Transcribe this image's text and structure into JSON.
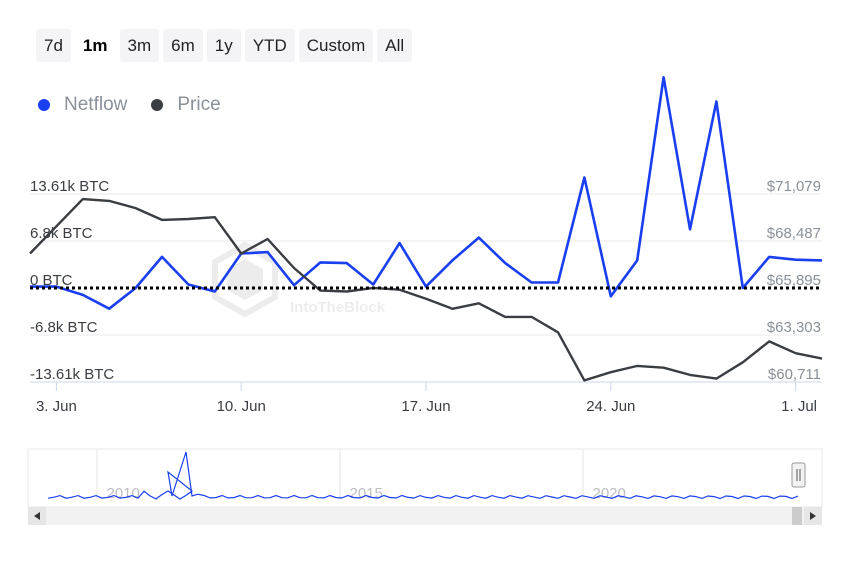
{
  "range_selector": {
    "buttons": [
      "7d",
      "1m",
      "3m",
      "6m",
      "1y",
      "YTD",
      "Custom",
      "All"
    ],
    "active": "1m"
  },
  "legend": {
    "netflow": {
      "label": "Netflow",
      "color": "#1a3ff0"
    },
    "price": {
      "label": "Price",
      "color": "#3a3d42"
    }
  },
  "watermark": "IntoTheBlock",
  "chart_data": {
    "type": "line",
    "x": [
      "2024-06-02",
      "2024-06-03",
      "2024-06-04",
      "2024-06-05",
      "2024-06-06",
      "2024-06-07",
      "2024-06-08",
      "2024-06-09",
      "2024-06-10",
      "2024-06-11",
      "2024-06-12",
      "2024-06-13",
      "2024-06-14",
      "2024-06-15",
      "2024-06-16",
      "2024-06-17",
      "2024-06-18",
      "2024-06-19",
      "2024-06-20",
      "2024-06-21",
      "2024-06-22",
      "2024-06-23",
      "2024-06-24",
      "2024-06-25",
      "2024-06-26",
      "2024-06-27",
      "2024-06-28",
      "2024-06-29",
      "2024-06-30",
      "2024-07-01",
      "2024-07-02"
    ],
    "x_tick_labels": [
      "3. Jun",
      "10. Jun",
      "17. Jun",
      "24. Jun",
      "1. Jul"
    ],
    "x_tick_dates": [
      "2024-06-03",
      "2024-06-10",
      "2024-06-17",
      "2024-06-24",
      "2024-07-01"
    ],
    "series": [
      {
        "name": "Netflow",
        "axis": "left",
        "color": "#1a3ff0",
        "values": [
          200,
          200,
          -1000,
          -3000,
          0,
          4500,
          500,
          -500,
          5000,
          5200,
          400,
          3700,
          3600,
          500,
          6500,
          200,
          4000,
          7300,
          3600,
          800,
          800,
          16000,
          -1200,
          4000,
          30500,
          8500,
          27000,
          0,
          4500,
          4100,
          4000
        ]
      },
      {
        "name": "Price",
        "axis": "right",
        "color": "#3a3d42",
        "values": [
          67800,
          69300,
          70800,
          70700,
          70300,
          69650,
          69700,
          69800,
          67800,
          68600,
          67000,
          65750,
          65700,
          65900,
          65800,
          65300,
          64750,
          65050,
          64300,
          64300,
          63450,
          60800,
          61250,
          61600,
          61500,
          61100,
          60900,
          61800,
          62950,
          62300,
          62000
        ]
      }
    ],
    "y_left": {
      "ticks": [
        "13.61k BTC",
        "6.8k BTC",
        "0 BTC",
        "-6.8k BTC",
        "-13.61k BTC"
      ]
    },
    "y_right": {
      "ticks": [
        "$71,079",
        "$68,487",
        "$65,895",
        "$63,303",
        "$60,711"
      ]
    },
    "grid": true,
    "zero_line": "dotted",
    "navigator": {
      "year_labels": [
        "2010",
        "2015",
        "2020"
      ]
    }
  }
}
